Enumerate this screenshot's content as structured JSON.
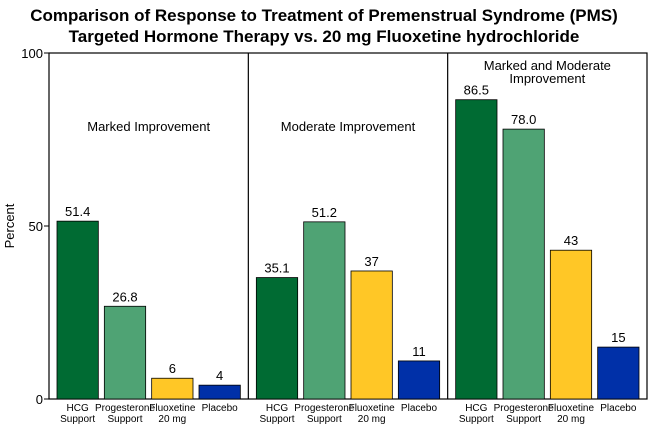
{
  "chart_data": {
    "type": "bar",
    "title_lines": [
      "Comparison of Response to Treatment of Premenstrual Syndrome (PMS)",
      "Targeted Hormone Therapy vs. 20 mg Fluoxetine hydrochloride"
    ],
    "ylabel": "Percent",
    "ylim": [
      0,
      100
    ],
    "yticks": [
      "0",
      "50",
      "100"
    ],
    "colors": [
      "#006b33",
      "#4fa374",
      "#ffc726",
      "#0030a8"
    ],
    "categories": [
      [
        "HCG",
        "Support"
      ],
      [
        "Progesterone",
        "Support"
      ],
      [
        "Fluoxetine",
        "20 mg"
      ],
      [
        "Placebo"
      ]
    ],
    "panels": [
      {
        "title_lines": [
          "Marked Improvement"
        ],
        "values": [
          51.4,
          26.8,
          6,
          4
        ],
        "labels": [
          "51.4",
          "26.8",
          "6",
          "4"
        ]
      },
      {
        "title_lines": [
          "Moderate Improvement"
        ],
        "values": [
          35.1,
          51.2,
          37,
          11
        ],
        "labels": [
          "35.1",
          "51.2",
          "37",
          "11"
        ]
      },
      {
        "title_lines": [
          "Marked and Moderate",
          "Improvement"
        ],
        "values": [
          86.5,
          78.0,
          43,
          15
        ],
        "labels": [
          "86.5",
          "78.0",
          "43",
          "15"
        ]
      }
    ]
  }
}
